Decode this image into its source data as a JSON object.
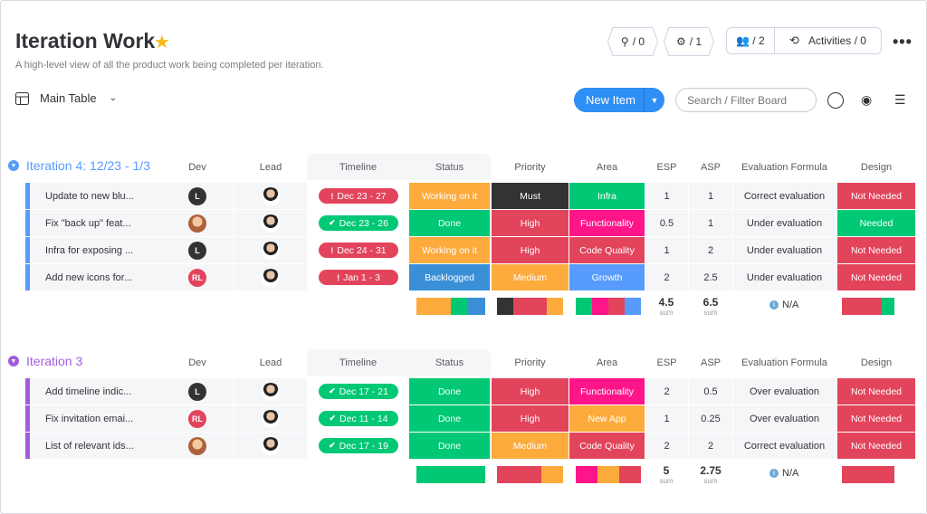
{
  "header": {
    "title": "Iteration Work",
    "description": "A high-level view of all the product work being completed per iteration.",
    "integrations_count": "/ 0",
    "automations_count": "/ 1",
    "members_count": "/ 2",
    "activities_label": "Activities / 0",
    "more_label": "•••"
  },
  "toolbar": {
    "view_label": "Main Table",
    "new_item_label": "New Item",
    "search_placeholder": "Search / Filter Board"
  },
  "columns": {
    "dev": "Dev",
    "lead": "Lead",
    "timeline": "Timeline",
    "status": "Status",
    "priority": "Priority",
    "area": "Area",
    "esp": "ESP",
    "asp": "ASP",
    "evaluation": "Evaluation Formula",
    "design": "Design"
  },
  "colors": {
    "blue_group": "#579bfc",
    "purple_group": "#a25ddc",
    "done": "#00c875",
    "working": "#fdab3d",
    "stuck": "#e2445c",
    "backlogged": "#3b8fd7",
    "must": "#333333",
    "high": "#e2445c",
    "medium": "#fdab3d",
    "functionality": "#ff158a",
    "code_quality": "#e2445c",
    "infra": "#00c875",
    "growth": "#579bfc",
    "new_app": "#fdab3d"
  },
  "groups": [
    {
      "title": "Iteration 4: 12/23 - 1/3",
      "rows": [
        {
          "name": "Update to new blu...",
          "dev": "L",
          "timeline": "Dec 23 - 27",
          "timeline_state": "!",
          "status": "Working on it",
          "priority": "Must",
          "area": "Infra",
          "esp": "1",
          "asp": "1",
          "evaluation": "Correct evaluation",
          "design": "Not Needed"
        },
        {
          "name": "Fix \"back up\" feat...",
          "dev": "",
          "timeline": "Dec 23 - 26",
          "timeline_state": "✔",
          "status": "Done",
          "priority": "High",
          "area": "Functionality",
          "esp": "0.5",
          "asp": "1",
          "evaluation": "Under evaluation",
          "design": "Needed"
        },
        {
          "name": "Infra for exposing ...",
          "dev": "L",
          "timeline": "Dec 24 - 31",
          "timeline_state": "!",
          "status": "Working on it",
          "priority": "High",
          "area": "Code Quality",
          "esp": "1",
          "asp": "2",
          "evaluation": "Under evaluation",
          "design": "Not Needed"
        },
        {
          "name": "Add new icons for...",
          "dev": "RL",
          "timeline": "Jan 1 - 3",
          "timeline_state": "!",
          "status": "Backlogged",
          "priority": "Medium",
          "area": "Growth",
          "esp": "2",
          "asp": "2.5",
          "evaluation": "Under evaluation",
          "design": "Not Needed"
        }
      ],
      "summary": {
        "esp": "4.5",
        "asp": "6.5",
        "sum_label": "sum",
        "evaluation": "N/A"
      }
    },
    {
      "title": "Iteration 3",
      "rows": [
        {
          "name": "Add timeline indic...",
          "dev": "L",
          "timeline": "Dec 17 - 21",
          "timeline_state": "✔",
          "status": "Done",
          "priority": "High",
          "area": "Functionality",
          "esp": "2",
          "asp": "0.5",
          "evaluation": "Over evaluation",
          "design": "Not Needed"
        },
        {
          "name": "Fix invitation emai...",
          "dev": "RL",
          "timeline": "Dec 11 - 14",
          "timeline_state": "✔",
          "status": "Done",
          "priority": "High",
          "area": "New App",
          "esp": "1",
          "asp": "0.25",
          "evaluation": "Over evaluation",
          "design": "Not Needed"
        },
        {
          "name": "List of relevant ids...",
          "dev": "",
          "timeline": "Dec 17 - 19",
          "timeline_state": "✔",
          "status": "Done",
          "priority": "Medium",
          "area": "Code Quality",
          "esp": "2",
          "asp": "2",
          "evaluation": "Correct evaluation",
          "design": "Not Needed"
        }
      ],
      "summary": {
        "esp": "5",
        "asp": "2.75",
        "sum_label": "sum",
        "evaluation": "N/A"
      }
    }
  ]
}
